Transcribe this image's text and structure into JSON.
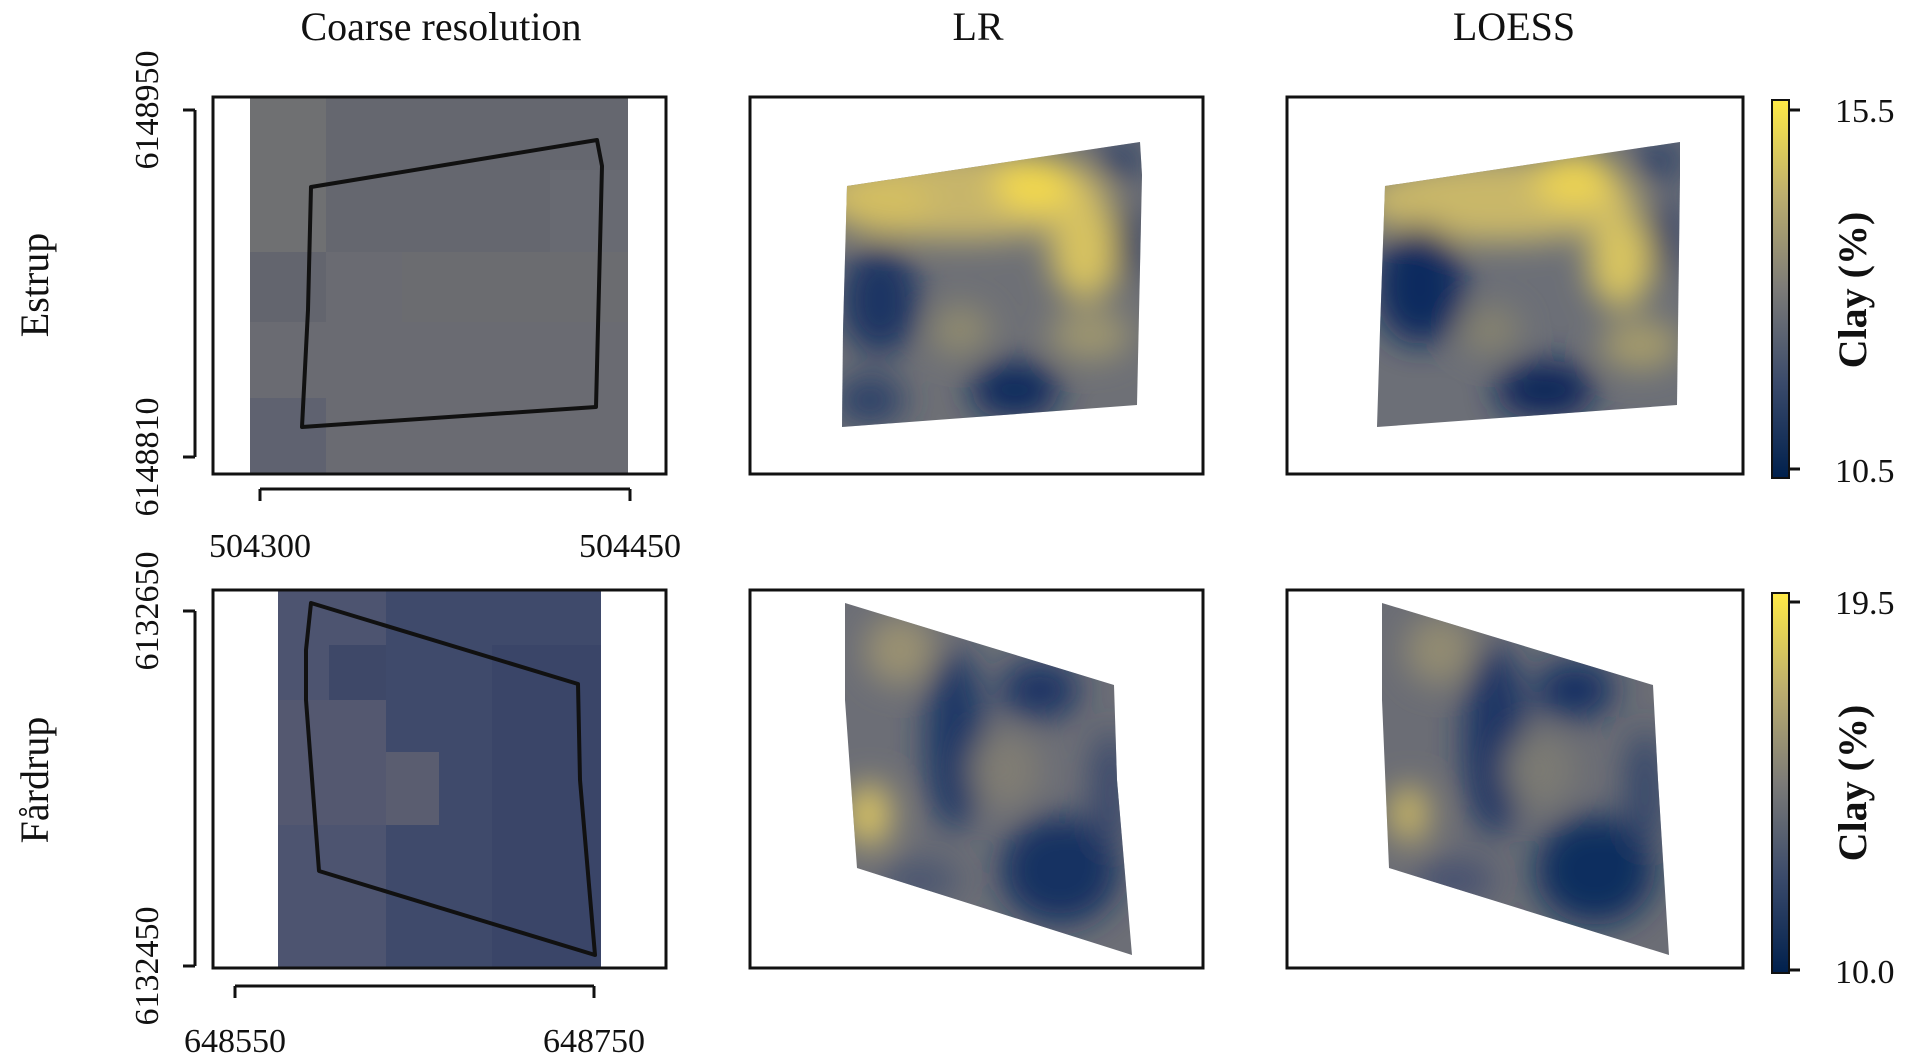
{
  "chart_data": {
    "type": "heatmap",
    "column_titles": [
      "Coarse resolution",
      "LR",
      "LOESS"
    ],
    "rows": [
      {
        "site": "Estrup",
        "x_ticks": [
          "504300",
          "504450"
        ],
        "y_ticks": [
          "6148810",
          "6148950"
        ],
        "x_values": [
          504300,
          504450
        ],
        "y_values": [
          6148810,
          6148950
        ],
        "colorbar": {
          "label": "Clay (%)",
          "min": "10.5",
          "max": "15.5",
          "min_value": 10.5,
          "max_value": 15.5
        }
      },
      {
        "site": "Fårdrup",
        "x_ticks": [
          "648550",
          "648750"
        ],
        "y_ticks": [
          "6132450",
          "6132650"
        ],
        "x_values": [
          648550,
          648750
        ],
        "y_values": [
          6132450,
          6132650
        ],
        "colorbar": {
          "label": "Clay (%)",
          "min": "10.0",
          "max": "19.5",
          "min_value": 10.0,
          "max_value": 19.5
        }
      }
    ],
    "colorscale": [
      "#00204d",
      "#3a4a6b",
      "#7c7b78",
      "#bdaf6e",
      "#ffea46"
    ]
  }
}
